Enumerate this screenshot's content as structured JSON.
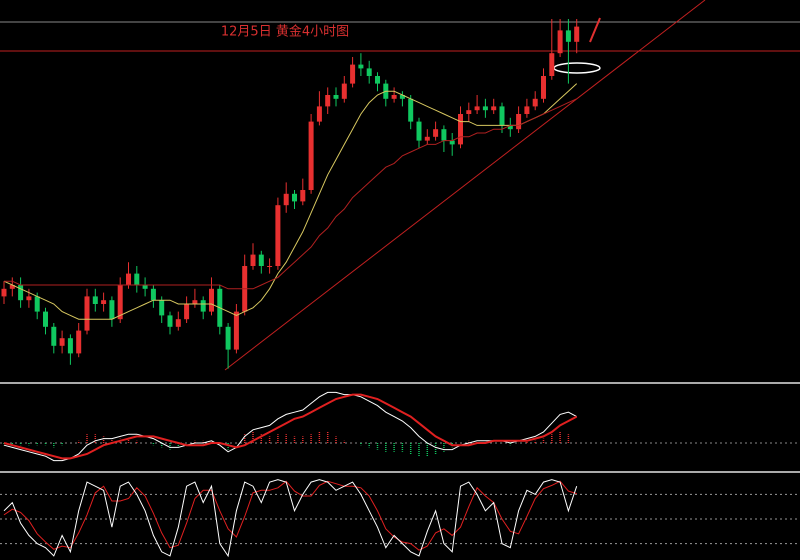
{
  "chart_data": {
    "type": "candlestick",
    "title": "12月5日 黄金4小时图",
    "up_color": "#e83030",
    "down_color": "#10c860",
    "ylim": [
      0,
      100
    ],
    "ohlc": [
      [
        22,
        26,
        20,
        24
      ],
      [
        24,
        27,
        22,
        25
      ],
      [
        25,
        27,
        19,
        21
      ],
      [
        21,
        24,
        19,
        22
      ],
      [
        22,
        23,
        16,
        18
      ],
      [
        18,
        19,
        12,
        14
      ],
      [
        14,
        15,
        7,
        9
      ],
      [
        9,
        13,
        7,
        11
      ],
      [
        11,
        12,
        4,
        7
      ],
      [
        7,
        15,
        6,
        13
      ],
      [
        13,
        24,
        12,
        22
      ],
      [
        22,
        24,
        18,
        20
      ],
      [
        20,
        23,
        18,
        21
      ],
      [
        21,
        22,
        14,
        16
      ],
      [
        16,
        27,
        15,
        25
      ],
      [
        25,
        31,
        24,
        28
      ],
      [
        28,
        30,
        23,
        25
      ],
      [
        25,
        27,
        22,
        24
      ],
      [
        24,
        25,
        19,
        21
      ],
      [
        21,
        22,
        15,
        17
      ],
      [
        17,
        18,
        12,
        14
      ],
      [
        14,
        18,
        13,
        16
      ],
      [
        16,
        22,
        15,
        20
      ],
      [
        20,
        24,
        19,
        21
      ],
      [
        21,
        22,
        16,
        18
      ],
      [
        18,
        27,
        17,
        24
      ],
      [
        24,
        25,
        12,
        14
      ],
      [
        14,
        15,
        3,
        8
      ],
      [
        8,
        20,
        7,
        18
      ],
      [
        18,
        33,
        17,
        30
      ],
      [
        30,
        36,
        29,
        33
      ],
      [
        33,
        34,
        28,
        30
      ],
      [
        30,
        32,
        28,
        30
      ],
      [
        30,
        48,
        29,
        46
      ],
      [
        46,
        52,
        44,
        49
      ],
      [
        49,
        50,
        45,
        47
      ],
      [
        47,
        53,
        46,
        50
      ],
      [
        50,
        70,
        49,
        68
      ],
      [
        68,
        76,
        67,
        72
      ],
      [
        72,
        77,
        70,
        75
      ],
      [
        75,
        77,
        72,
        74
      ],
      [
        74,
        80,
        73,
        78
      ],
      [
        78,
        85,
        77,
        83
      ],
      [
        83,
        86,
        80,
        82
      ],
      [
        82,
        84,
        78,
        80
      ],
      [
        80,
        81,
        76,
        78
      ],
      [
        78,
        79,
        72,
        74
      ],
      [
        74,
        77,
        73,
        75
      ],
      [
        75,
        76,
        72,
        74
      ],
      [
        74,
        75,
        66,
        68
      ],
      [
        68,
        69,
        61,
        63
      ],
      [
        63,
        66,
        62,
        64
      ],
      [
        64,
        68,
        63,
        66
      ],
      [
        66,
        67,
        60,
        63
      ],
      [
        63,
        65,
        59,
        62
      ],
      [
        62,
        72,
        61,
        70
      ],
      [
        70,
        73,
        68,
        71
      ],
      [
        71,
        75,
        70,
        72
      ],
      [
        72,
        74,
        69,
        71
      ],
      [
        71,
        74,
        70,
        72
      ],
      [
        72,
        73,
        65,
        67
      ],
      [
        67,
        69,
        64,
        66
      ],
      [
        66,
        72,
        65,
        70
      ],
      [
        70,
        74,
        69,
        72
      ],
      [
        72,
        76,
        71,
        74
      ],
      [
        74,
        82,
        73,
        80
      ],
      [
        80,
        95,
        79,
        86
      ],
      [
        86,
        95,
        85,
        92
      ],
      [
        92,
        95,
        78,
        89
      ],
      [
        89,
        95,
        86,
        93
      ]
    ],
    "ma": [
      {
        "color": "#d8c860",
        "values": [
          26,
          25,
          24,
          23,
          22,
          21,
          20,
          18,
          17,
          16,
          16,
          16,
          16,
          16,
          17,
          18,
          19,
          20,
          21,
          21,
          21,
          20,
          20,
          20,
          20,
          20,
          19,
          18,
          17,
          18,
          19,
          21,
          24,
          28,
          31,
          35,
          39,
          44,
          49,
          54,
          58,
          62,
          66,
          70,
          73,
          75,
          76,
          76,
          75,
          74,
          73,
          72,
          71,
          70,
          69,
          68,
          68,
          67,
          67,
          67,
          67,
          67,
          67,
          68,
          69,
          70,
          72,
          74,
          76,
          78
        ]
      },
      {
        "color": "#b02020",
        "values": [
          26,
          26,
          25,
          25,
          25,
          25,
          25,
          25,
          25,
          25,
          25,
          25,
          25,
          25,
          25,
          25,
          25,
          25,
          25,
          25,
          25,
          25,
          25,
          25,
          25,
          25,
          25,
          24,
          24,
          24,
          24,
          25,
          26,
          27,
          29,
          31,
          33,
          35,
          38,
          40,
          43,
          45,
          48,
          50,
          52,
          54,
          56,
          57,
          59,
          60,
          61,
          62,
          62,
          63,
          63,
          64,
          64,
          65,
          65,
          66,
          66,
          67,
          67,
          68,
          69,
          70,
          71,
          72,
          73,
          74
        ]
      }
    ],
    "macd": {
      "ylim": [
        -10,
        25
      ],
      "dif": {
        "color": "#ffffff",
        "values": [
          -1,
          -2,
          -3,
          -4,
          -5,
          -6,
          -8,
          -8,
          -7,
          -5,
          -1,
          1,
          2,
          2,
          3,
          4,
          4,
          3,
          2,
          0,
          -2,
          -2,
          -1,
          0,
          0,
          1,
          -1,
          -4,
          -2,
          3,
          6,
          7,
          8,
          11,
          13,
          14,
          15,
          18,
          21,
          23,
          23,
          22,
          22,
          21,
          19,
          17,
          14,
          12,
          10,
          7,
          3,
          0,
          -2,
          -3,
          -3,
          -1,
          0,
          1,
          1,
          1,
          1,
          0,
          1,
          2,
          3,
          5,
          9,
          13,
          14,
          12
        ]
      },
      "dea": {
        "color": "#e02020",
        "values": [
          0,
          -1,
          -2,
          -3,
          -4,
          -5,
          -6,
          -7,
          -7,
          -6,
          -5,
          -3,
          -1,
          0,
          1,
          2,
          3,
          3,
          3,
          2,
          1,
          0,
          -1,
          -1,
          -1,
          0,
          0,
          -1,
          -2,
          -1,
          1,
          3,
          5,
          7,
          9,
          11,
          12,
          14,
          16,
          18,
          20,
          21,
          22,
          22,
          21,
          20,
          18,
          16,
          14,
          12,
          9,
          6,
          3,
          1,
          -1,
          -1,
          -1,
          0,
          0,
          1,
          1,
          1,
          1,
          1,
          2,
          3,
          5,
          8,
          10,
          12
        ]
      },
      "hist": [
        -1,
        -1,
        -1,
        -1,
        -1,
        -1,
        -2,
        -1,
        0,
        1,
        4,
        4,
        3,
        2,
        2,
        2,
        1,
        0,
        -1,
        -2,
        -3,
        -2,
        0,
        1,
        1,
        1,
        -1,
        -3,
        0,
        4,
        5,
        4,
        3,
        4,
        4,
        3,
        3,
        4,
        5,
        5,
        3,
        1,
        0,
        -1,
        -2,
        -3,
        -4,
        -4,
        -4,
        -5,
        -6,
        -6,
        -5,
        -4,
        -2,
        0,
        1,
        1,
        1,
        0,
        0,
        -1,
        0,
        1,
        1,
        2,
        4,
        5,
        4,
        0
      ]
    },
    "kdj": {
      "ylim": [
        0,
        100
      ],
      "levels": [
        20,
        50,
        80
      ],
      "k": {
        "color": "#ffffff",
        "values": [
          60,
          70,
          45,
          30,
          20,
          15,
          5,
          30,
          10,
          60,
          95,
          90,
          85,
          40,
          90,
          95,
          80,
          60,
          30,
          10,
          5,
          40,
          90,
          95,
          70,
          90,
          20,
          5,
          60,
          95,
          90,
          70,
          95,
          98,
          95,
          60,
          80,
          95,
          98,
          95,
          85,
          90,
          95,
          80,
          60,
          40,
          15,
          30,
          20,
          10,
          5,
          35,
          60,
          20,
          10,
          90,
          95,
          80,
          60,
          70,
          20,
          15,
          60,
          85,
          80,
          95,
          98,
          95,
          60,
          90
        ]
      },
      "d": {
        "color": "#e02020",
        "values": [
          55,
          62,
          58,
          48,
          32,
          22,
          13,
          17,
          15,
          33,
          55,
          82,
          90,
          72,
          72,
          75,
          88,
          78,
          57,
          33,
          15,
          18,
          45,
          75,
          85,
          85,
          60,
          38,
          28,
          53,
          82,
          85,
          85,
          88,
          96,
          84,
          78,
          78,
          91,
          96,
          93,
          90,
          90,
          88,
          78,
          60,
          38,
          28,
          22,
          20,
          12,
          17,
          33,
          38,
          30,
          40,
          65,
          88,
          78,
          70,
          50,
          35,
          32,
          53,
          75,
          87,
          91,
          96,
          84,
          81
        ]
      }
    }
  }
}
